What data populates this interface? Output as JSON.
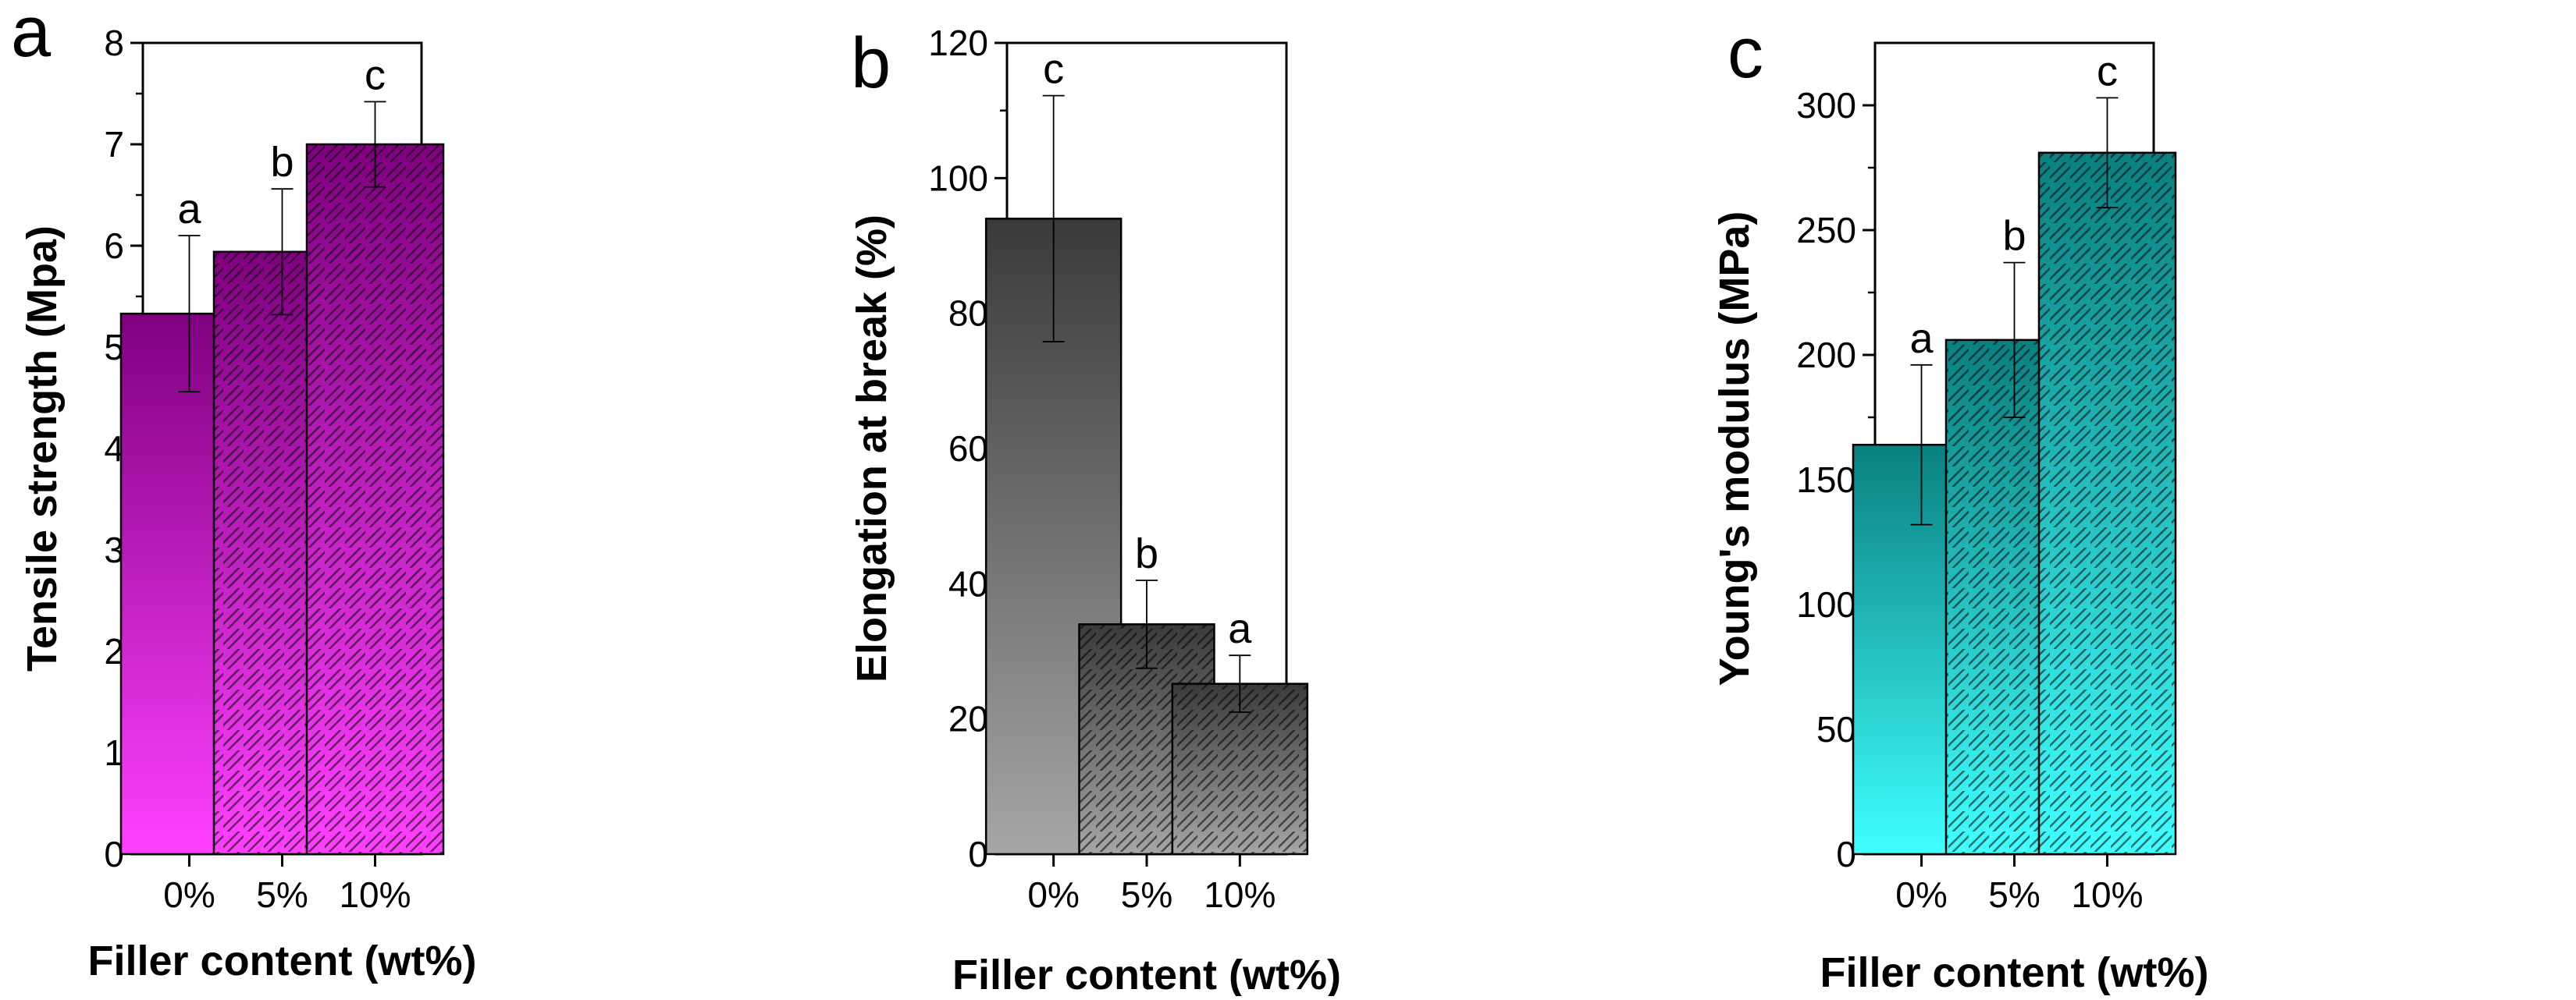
{
  "chart_data": [
    {
      "panel": "a",
      "type": "bar",
      "categories": [
        "0%",
        "5%",
        "10%"
      ],
      "values": [
        5.33,
        5.94,
        7.0
      ],
      "errors": [
        0.77,
        0.62,
        0.42
      ],
      "significance": [
        "a",
        "b",
        "c"
      ],
      "xlabel": "Filler content (wt%)",
      "ylabel": "Tensile strength (Mpa)",
      "ylim": [
        0,
        8
      ],
      "yticks": [
        "0",
        "1",
        "2",
        "3",
        "4",
        "5",
        "6",
        "7",
        "8"
      ],
      "colors": {
        "top": "#800080",
        "bottom": "#ff40ff"
      },
      "hatched": [
        false,
        true,
        true
      ],
      "grid": false
    },
    {
      "panel": "b",
      "type": "bar",
      "categories": [
        "0%",
        "5%",
        "10%"
      ],
      "values": [
        94,
        34,
        25.2
      ],
      "errors": [
        18.2,
        6.5,
        4.2
      ],
      "significance": [
        "c",
        "b",
        "a"
      ],
      "xlabel": "Filler content (wt%)",
      "ylabel": "Elongation at break (%)",
      "ylim": [
        0,
        120
      ],
      "yticks": [
        "0",
        "20",
        "40",
        "60",
        "80",
        "100",
        "120"
      ],
      "colors": {
        "top": "#3a3a3a",
        "bottom": "#a6a6a6"
      },
      "hatched": [
        false,
        true,
        true
      ],
      "grid": false
    },
    {
      "panel": "c",
      "type": "bar",
      "categories": [
        "0%",
        "5%",
        "10%"
      ],
      "values": [
        164,
        206,
        281
      ],
      "errors": [
        32,
        31,
        22
      ],
      "significance": [
        "a",
        "b",
        "c"
      ],
      "xlabel": "Filler content (wt%)",
      "ylabel": "Young's modulus (MPa)",
      "ylim": [
        0,
        325
      ],
      "yticks": [
        "0",
        "50",
        "100",
        "150",
        "200",
        "250",
        "300"
      ],
      "colors": {
        "top": "#0a8080",
        "bottom": "#40ffff"
      },
      "hatched": [
        false,
        true,
        true
      ],
      "grid": false
    }
  ]
}
